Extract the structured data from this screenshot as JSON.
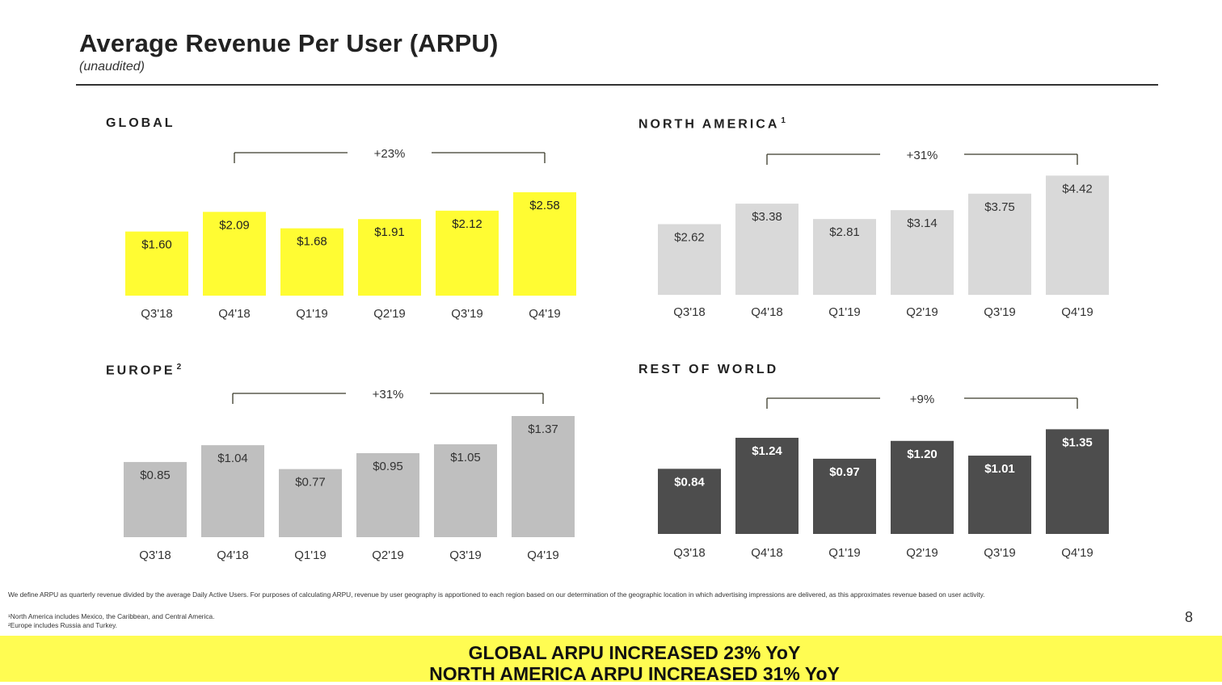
{
  "slide": {
    "title": "Average Revenue Per User (ARPU)",
    "subtitle": "(unaudited)",
    "page_number": "8"
  },
  "footnotes": {
    "main": "We define ARPU as quarterly revenue divided by the average Daily Active Users. For purposes of calculating ARPU, revenue by user geography is apportioned to each region based on our determination of the geographic location in which advertising impressions are delivered, as this approximates revenue based on user activity.",
    "note1": "¹North America includes Mexico, the Caribbean, and Central America.",
    "note2": "²Europe includes Russia and Turkey."
  },
  "banner": {
    "line1": "GLOBAL ARPU INCREASED 23% YoY",
    "line2": "NORTH AMERICA ARPU INCREASED 31% YoY"
  },
  "chart_data": [
    {
      "type": "bar",
      "id": "global",
      "title": "GLOBAL",
      "superscript": "",
      "categories": [
        "Q3'18",
        "Q4'18",
        "Q1'19",
        "Q2'19",
        "Q3'19",
        "Q4'19"
      ],
      "values": [
        1.6,
        2.09,
        1.68,
        1.91,
        2.12,
        2.58
      ],
      "labels": [
        "$1.60",
        "$2.09",
        "$1.68",
        "$1.91",
        "$2.12",
        "$2.58"
      ],
      "unit": "$",
      "color": "#fffc33",
      "label_color": "#222222",
      "growth": "+23%",
      "growth_from": "Q4'18",
      "growth_to": "Q4'19"
    },
    {
      "type": "bar",
      "id": "north-america",
      "title": "NORTH AMERICA",
      "superscript": "1",
      "categories": [
        "Q3'18",
        "Q4'18",
        "Q1'19",
        "Q2'19",
        "Q3'19",
        "Q4'19"
      ],
      "values": [
        2.62,
        3.38,
        2.81,
        3.14,
        3.75,
        4.42
      ],
      "labels": [
        "$2.62",
        "$3.38",
        "$2.81",
        "$3.14",
        "$3.75",
        "$4.42"
      ],
      "unit": "$",
      "color": "#d9d9d9",
      "label_color": "#333333",
      "growth": "+31%",
      "growth_from": "Q4'18",
      "growth_to": "Q4'19"
    },
    {
      "type": "bar",
      "id": "europe",
      "title": "EUROPE",
      "superscript": "2",
      "categories": [
        "Q3'18",
        "Q4'18",
        "Q1'19",
        "Q2'19",
        "Q3'19",
        "Q4'19"
      ],
      "values": [
        0.85,
        1.04,
        0.77,
        0.95,
        1.05,
        1.37
      ],
      "labels": [
        "$0.85",
        "$1.04",
        "$0.77",
        "$0.95",
        "$1.05",
        "$1.37"
      ],
      "unit": "$",
      "color": "#bfbfbf",
      "label_color": "#333333",
      "growth": "+31%",
      "growth_from": "Q4'18",
      "growth_to": "Q4'19"
    },
    {
      "type": "bar",
      "id": "rest-of-world",
      "title": "REST OF WORLD",
      "superscript": "",
      "categories": [
        "Q3'18",
        "Q4'18",
        "Q1'19",
        "Q2'19",
        "Q3'19",
        "Q4'19"
      ],
      "values": [
        0.84,
        1.24,
        0.97,
        1.2,
        1.01,
        1.35
      ],
      "labels": [
        "$0.84",
        "$1.24",
        "$0.97",
        "$1.20",
        "$1.01",
        "$1.35"
      ],
      "unit": "$",
      "color": "#4d4d4d",
      "label_color": "#ffffff",
      "growth": "+9%",
      "growth_from": "Q4'18",
      "growth_to": "Q4'19"
    }
  ]
}
